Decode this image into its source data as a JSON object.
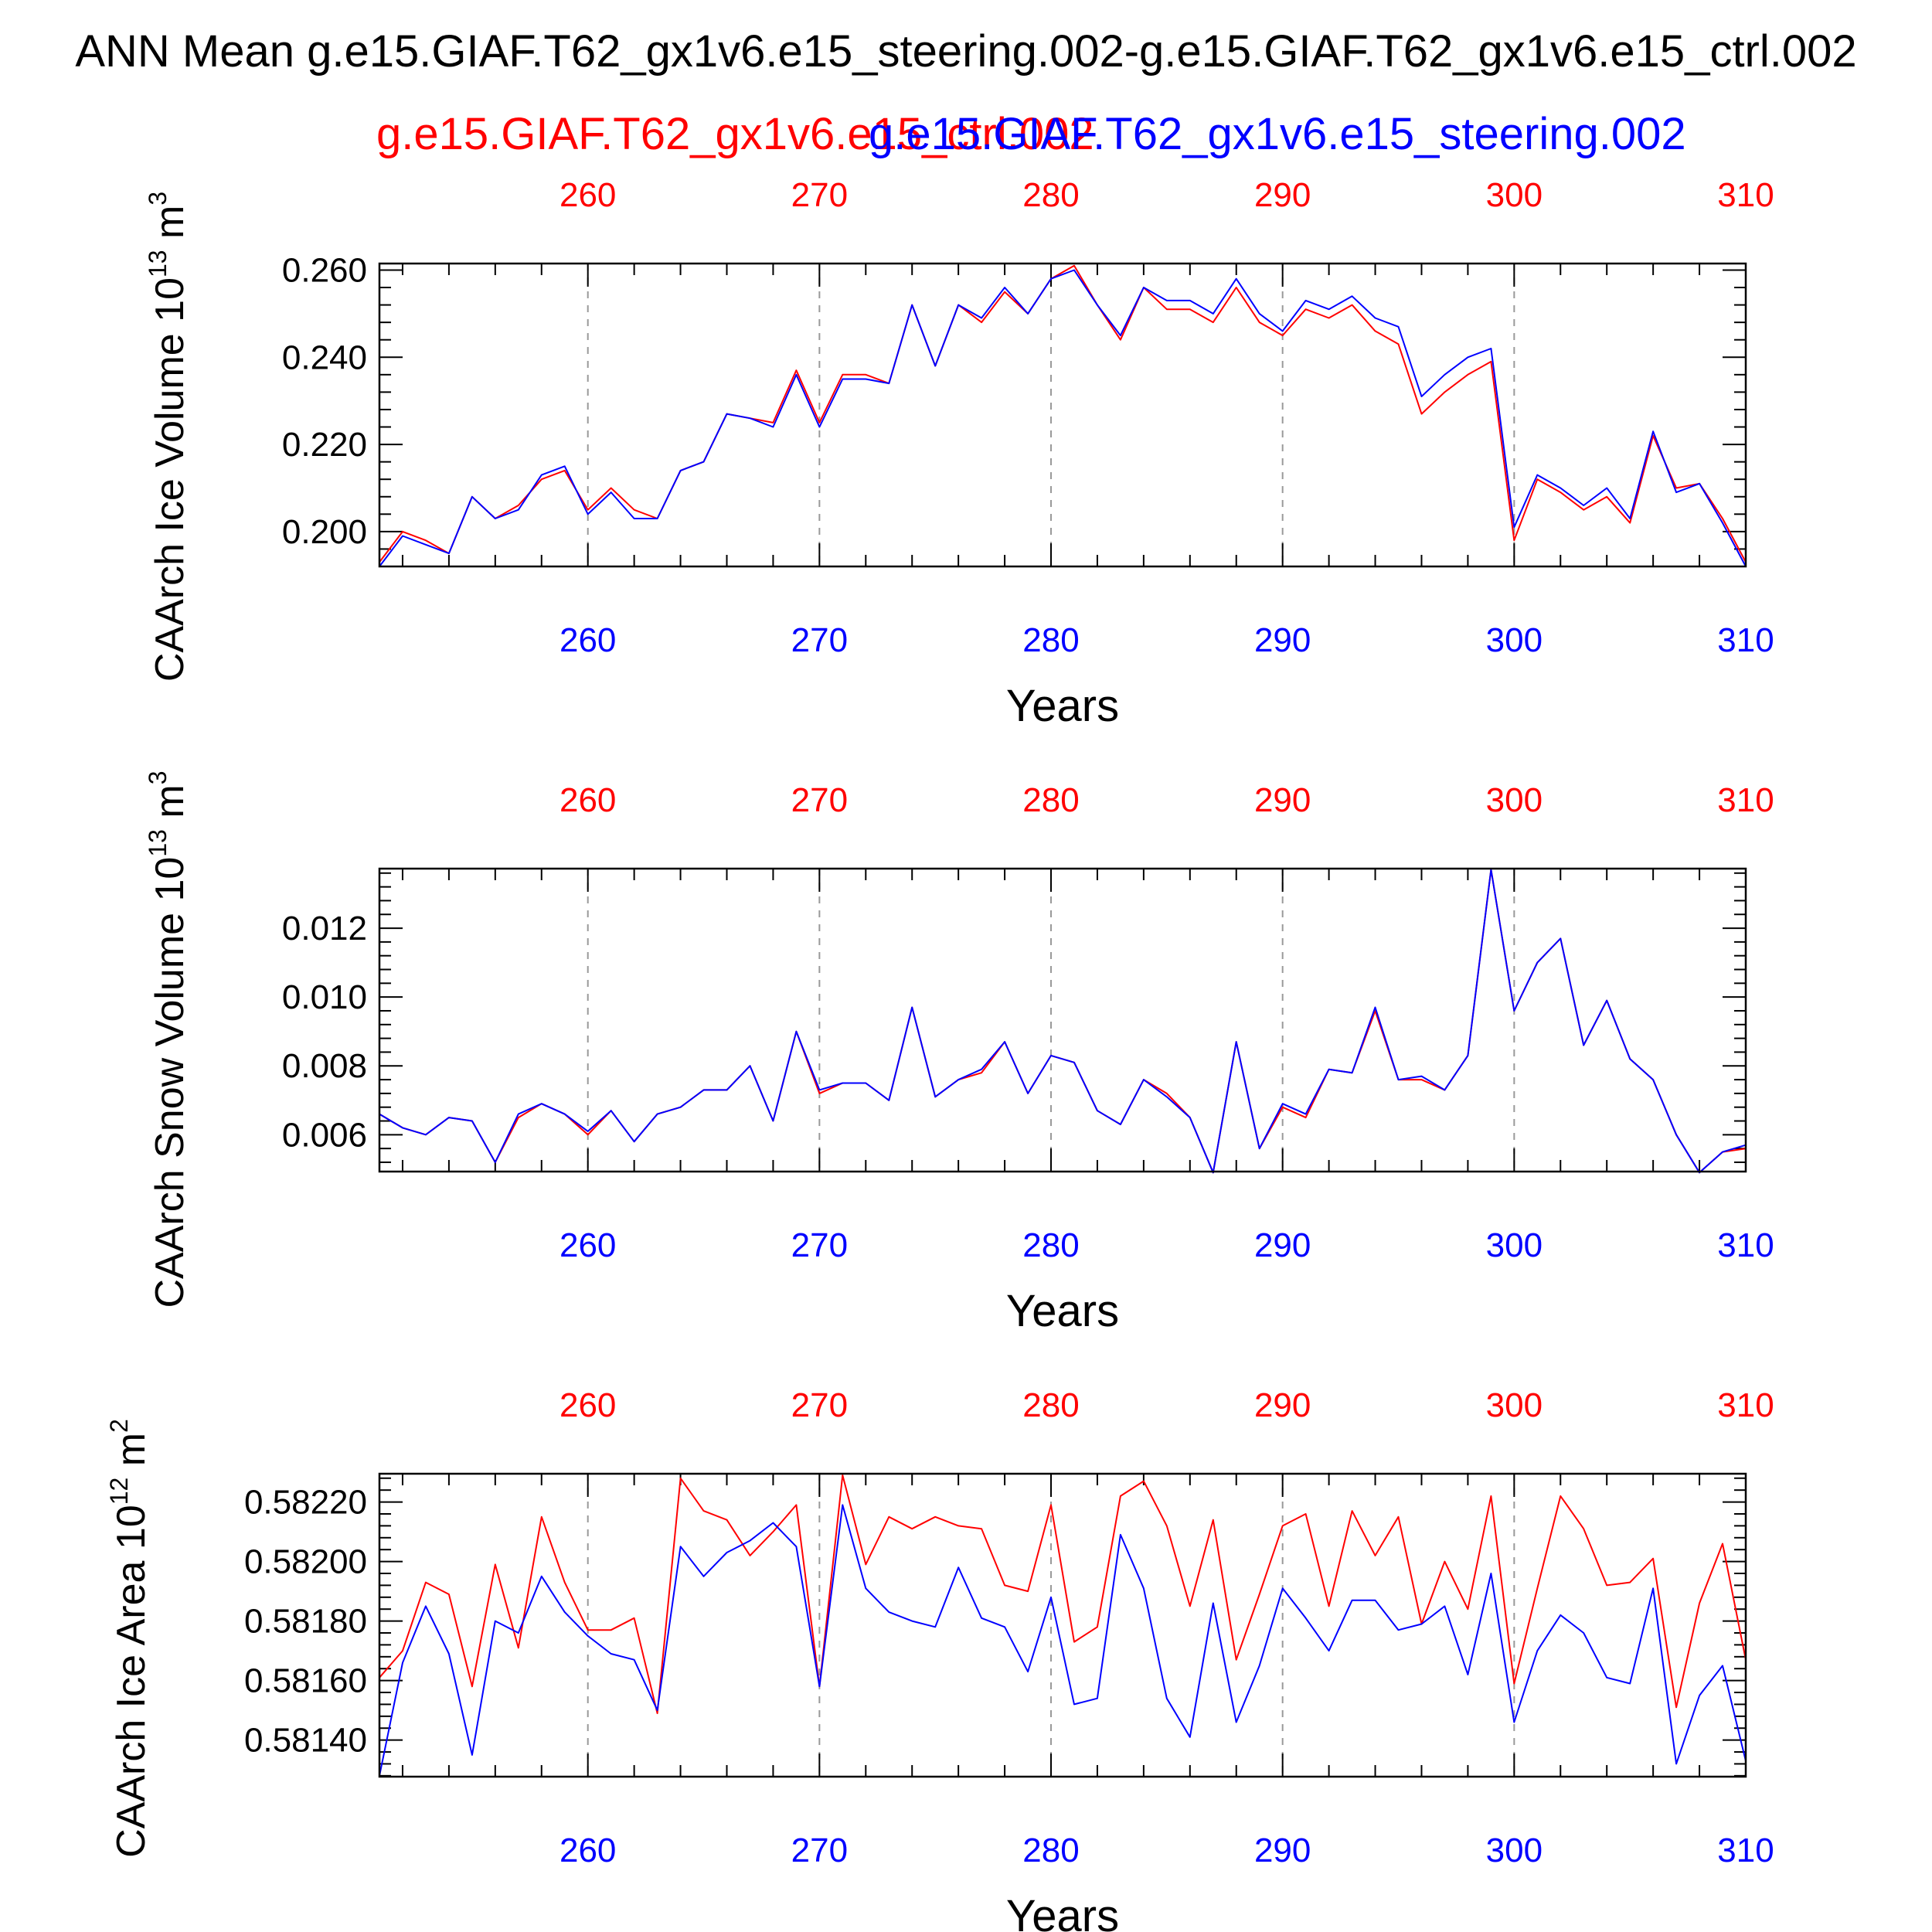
{
  "title": "ANN Mean g.e15.GIAF.T62_gx1v6.e15_steering.002-g.e15.GIAF.T62_gx1v6.e15_ctrl.002",
  "legend": {
    "ctrl": "g.e15.GIAF.T62_gx1v6.e15_ctrl.002",
    "steering": "g.e15.GIAF.T62_gx1v6.e15_steering.002"
  },
  "colors": {
    "ctrl": "#ff0000",
    "steering": "#0000ff",
    "axis": "#000000",
    "grid": "#999999"
  },
  "chart_data": [
    {
      "type": "line",
      "title": "",
      "ylabel_main": "CAArch Ice Volume 10",
      "ylabel_exp": "13",
      "ylabel_unit": " m",
      "ylabel_unit_exp": "3",
      "xlabel": "Years",
      "xlim": [
        251,
        310
      ],
      "ylim": [
        0.192,
        0.2615
      ],
      "xticks": [
        "260",
        "270",
        "280",
        "290",
        "300",
        "310"
      ],
      "yticks": [
        "0.200",
        "0.220",
        "0.240",
        "0.260"
      ],
      "x": [
        251,
        252,
        253,
        254,
        255,
        256,
        257,
        258,
        259,
        260,
        261,
        262,
        263,
        264,
        265,
        266,
        267,
        268,
        269,
        270,
        271,
        272,
        273,
        274,
        275,
        276,
        277,
        278,
        279,
        280,
        281,
        282,
        283,
        284,
        285,
        286,
        287,
        288,
        289,
        290,
        291,
        292,
        293,
        294,
        295,
        296,
        297,
        298,
        299,
        300,
        301,
        302,
        303,
        304,
        305,
        306,
        307,
        308,
        309,
        310
      ],
      "series": [
        {
          "name": "g.e15.GIAF.T62_gx1v6.e15_ctrl.002",
          "color": "#ff0000",
          "values": [
            0.193,
            0.2,
            0.198,
            0.195,
            0.208,
            0.203,
            0.206,
            0.212,
            0.214,
            0.205,
            0.21,
            0.205,
            0.203,
            0.214,
            0.216,
            0.227,
            0.226,
            0.225,
            0.237,
            0.225,
            0.236,
            0.236,
            0.234,
            0.252,
            0.238,
            0.252,
            0.248,
            0.255,
            0.25,
            0.258,
            0.261,
            0.252,
            0.244,
            0.256,
            0.251,
            0.251,
            0.248,
            0.256,
            0.248,
            0.245,
            0.251,
            0.249,
            0.252,
            0.246,
            0.243,
            0.227,
            0.232,
            0.236,
            0.239,
            0.198,
            0.212,
            0.209,
            0.205,
            0.208,
            0.202,
            0.222,
            0.21,
            0.211,
            0.203,
            0.193
          ]
        },
        {
          "name": "g.e15.GIAF.T62_gx1v6.e15_steering.002",
          "color": "#0000ff",
          "values": [
            0.192,
            0.199,
            0.197,
            0.195,
            0.208,
            0.203,
            0.205,
            0.213,
            0.215,
            0.204,
            0.209,
            0.203,
            0.203,
            0.214,
            0.216,
            0.227,
            0.226,
            0.224,
            0.236,
            0.224,
            0.235,
            0.235,
            0.234,
            0.252,
            0.238,
            0.252,
            0.249,
            0.256,
            0.25,
            0.258,
            0.26,
            0.252,
            0.245,
            0.256,
            0.253,
            0.253,
            0.25,
            0.258,
            0.25,
            0.246,
            0.253,
            0.251,
            0.254,
            0.249,
            0.247,
            0.231,
            0.236,
            0.24,
            0.242,
            0.201,
            0.213,
            0.21,
            0.206,
            0.21,
            0.203,
            0.223,
            0.209,
            0.211,
            0.202,
            0.192
          ]
        }
      ]
    },
    {
      "type": "line",
      "title": "",
      "ylabel_main": "CAArch Snow Volume 10",
      "ylabel_exp": "13",
      "ylabel_unit": " m",
      "ylabel_unit_exp": "3",
      "xlabel": "Years",
      "xlim": [
        251,
        310
      ],
      "ylim": [
        0.00493,
        0.01373
      ],
      "xticks": [
        "260",
        "270",
        "280",
        "290",
        "300",
        "310"
      ],
      "yticks": [
        "0.006",
        "0.008",
        "0.010",
        "0.012"
      ],
      "x": [
        251,
        252,
        253,
        254,
        255,
        256,
        257,
        258,
        259,
        260,
        261,
        262,
        263,
        264,
        265,
        266,
        267,
        268,
        269,
        270,
        271,
        272,
        273,
        274,
        275,
        276,
        277,
        278,
        279,
        280,
        281,
        282,
        283,
        284,
        285,
        286,
        287,
        288,
        289,
        290,
        291,
        292,
        293,
        294,
        295,
        296,
        297,
        298,
        299,
        300,
        301,
        302,
        303,
        304,
        305,
        306,
        307,
        308,
        309,
        310
      ],
      "series": [
        {
          "name": "g.e15.GIAF.T62_gx1v6.e15_ctrl.002",
          "color": "#ff0000",
          "values": [
            0.0066,
            0.0062,
            0.006,
            0.0065,
            0.0064,
            0.0052,
            0.0065,
            0.0069,
            0.0066,
            0.006,
            0.0067,
            0.0058,
            0.0066,
            0.0068,
            0.0073,
            0.0073,
            0.008,
            0.0064,
            0.009,
            0.0072,
            0.0075,
            0.0075,
            0.007,
            0.0097,
            0.0071,
            0.0076,
            0.0078,
            0.0087,
            0.0072,
            0.0083,
            0.0081,
            0.0067,
            0.0063,
            0.0076,
            0.0072,
            0.0065,
            0.0049,
            0.0087,
            0.0056,
            0.0068,
            0.0065,
            0.0079,
            0.0078,
            0.0096,
            0.0076,
            0.0076,
            0.0073,
            0.0083,
            0.0137,
            0.0096,
            0.011,
            0.0117,
            0.0086,
            0.0099,
            0.0082,
            0.0076,
            0.006,
            0.0049,
            0.0055,
            0.0056
          ]
        },
        {
          "name": "g.e15.GIAF.T62_gx1v6.e15_steering.002",
          "color": "#0000ff",
          "values": [
            0.0066,
            0.0062,
            0.006,
            0.0065,
            0.0064,
            0.0052,
            0.0066,
            0.0069,
            0.0066,
            0.0061,
            0.0067,
            0.0058,
            0.0066,
            0.0068,
            0.0073,
            0.0073,
            0.008,
            0.0064,
            0.009,
            0.0073,
            0.0075,
            0.0075,
            0.007,
            0.0097,
            0.0071,
            0.0076,
            0.0079,
            0.0087,
            0.0072,
            0.0083,
            0.0081,
            0.0067,
            0.0063,
            0.0076,
            0.0071,
            0.0065,
            0.0049,
            0.0087,
            0.0056,
            0.0069,
            0.0066,
            0.0079,
            0.0078,
            0.0097,
            0.0076,
            0.0077,
            0.0073,
            0.0083,
            0.0137,
            0.0096,
            0.011,
            0.0117,
            0.0086,
            0.0099,
            0.0082,
            0.0076,
            0.006,
            0.0049,
            0.0055,
            0.0057
          ]
        }
      ]
    },
    {
      "type": "line",
      "title": "",
      "ylabel_main": "CAArch Ice Area 10",
      "ylabel_exp": "12",
      "ylabel_unit": " m",
      "ylabel_unit_exp": "2",
      "xlabel": "Years",
      "xlim": [
        251,
        310
      ],
      "ylim": [
        0.581277,
        0.582295
      ],
      "xticks": [
        "260",
        "270",
        "280",
        "290",
        "300",
        "310"
      ],
      "yticks": [
        "0.58140",
        "0.58160",
        "0.58180",
        "0.58200",
        "0.58220"
      ],
      "x": [
        251,
        252,
        253,
        254,
        255,
        256,
        257,
        258,
        259,
        260,
        261,
        262,
        263,
        264,
        265,
        266,
        267,
        268,
        269,
        270,
        271,
        272,
        273,
        274,
        275,
        276,
        277,
        278,
        279,
        280,
        281,
        282,
        283,
        284,
        285,
        286,
        287,
        288,
        289,
        290,
        291,
        292,
        293,
        294,
        295,
        296,
        297,
        298,
        299,
        300,
        301,
        302,
        303,
        304,
        305,
        306,
        307,
        308,
        309,
        310
      ],
      "series": [
        {
          "name": "g.e15.GIAF.T62_gx1v6.e15_ctrl.002",
          "color": "#ff0000",
          "values": [
            0.58161,
            0.5817,
            0.58193,
            0.58189,
            0.58158,
            0.58199,
            0.58171,
            0.58215,
            0.58193,
            0.58177,
            0.58177,
            0.58181,
            0.58149,
            0.58228,
            0.58217,
            0.58214,
            0.58202,
            0.5821,
            0.58219,
            0.58158,
            0.58229,
            0.58199,
            0.58215,
            0.58211,
            0.58215,
            0.58212,
            0.58211,
            0.58192,
            0.5819,
            0.58219,
            0.58173,
            0.58178,
            0.58222,
            0.58227,
            0.58212,
            0.58185,
            0.58214,
            0.58167,
            0.58189,
            0.58212,
            0.58216,
            0.58185,
            0.58217,
            0.58202,
            0.58215,
            0.58179,
            0.582,
            0.58184,
            0.58222,
            0.58159,
            0.58191,
            0.58222,
            0.58211,
            0.58192,
            0.58193,
            0.58201,
            0.58151,
            0.58186,
            0.58206,
            0.58167
          ]
        },
        {
          "name": "g.e15.GIAF.T62_gx1v6.e15_steering.002",
          "color": "#0000ff",
          "values": [
            0.58128,
            0.58166,
            0.58185,
            0.58169,
            0.58135,
            0.5818,
            0.58176,
            0.58195,
            0.58183,
            0.58175,
            0.58169,
            0.58167,
            0.5815,
            0.58205,
            0.58195,
            0.58203,
            0.58207,
            0.58213,
            0.58205,
            0.58158,
            0.58219,
            0.58191,
            0.58183,
            0.5818,
            0.58178,
            0.58198,
            0.58181,
            0.58178,
            0.58163,
            0.58188,
            0.58152,
            0.58154,
            0.58209,
            0.58191,
            0.58154,
            0.58141,
            0.58186,
            0.58146,
            0.58165,
            0.58191,
            0.58181,
            0.5817,
            0.58187,
            0.58187,
            0.58177,
            0.58179,
            0.58185,
            0.58162,
            0.58196,
            0.58146,
            0.5817,
            0.58182,
            0.58176,
            0.58161,
            0.58159,
            0.58191,
            0.58132,
            0.58155,
            0.58165,
            0.58133
          ]
        }
      ]
    }
  ]
}
